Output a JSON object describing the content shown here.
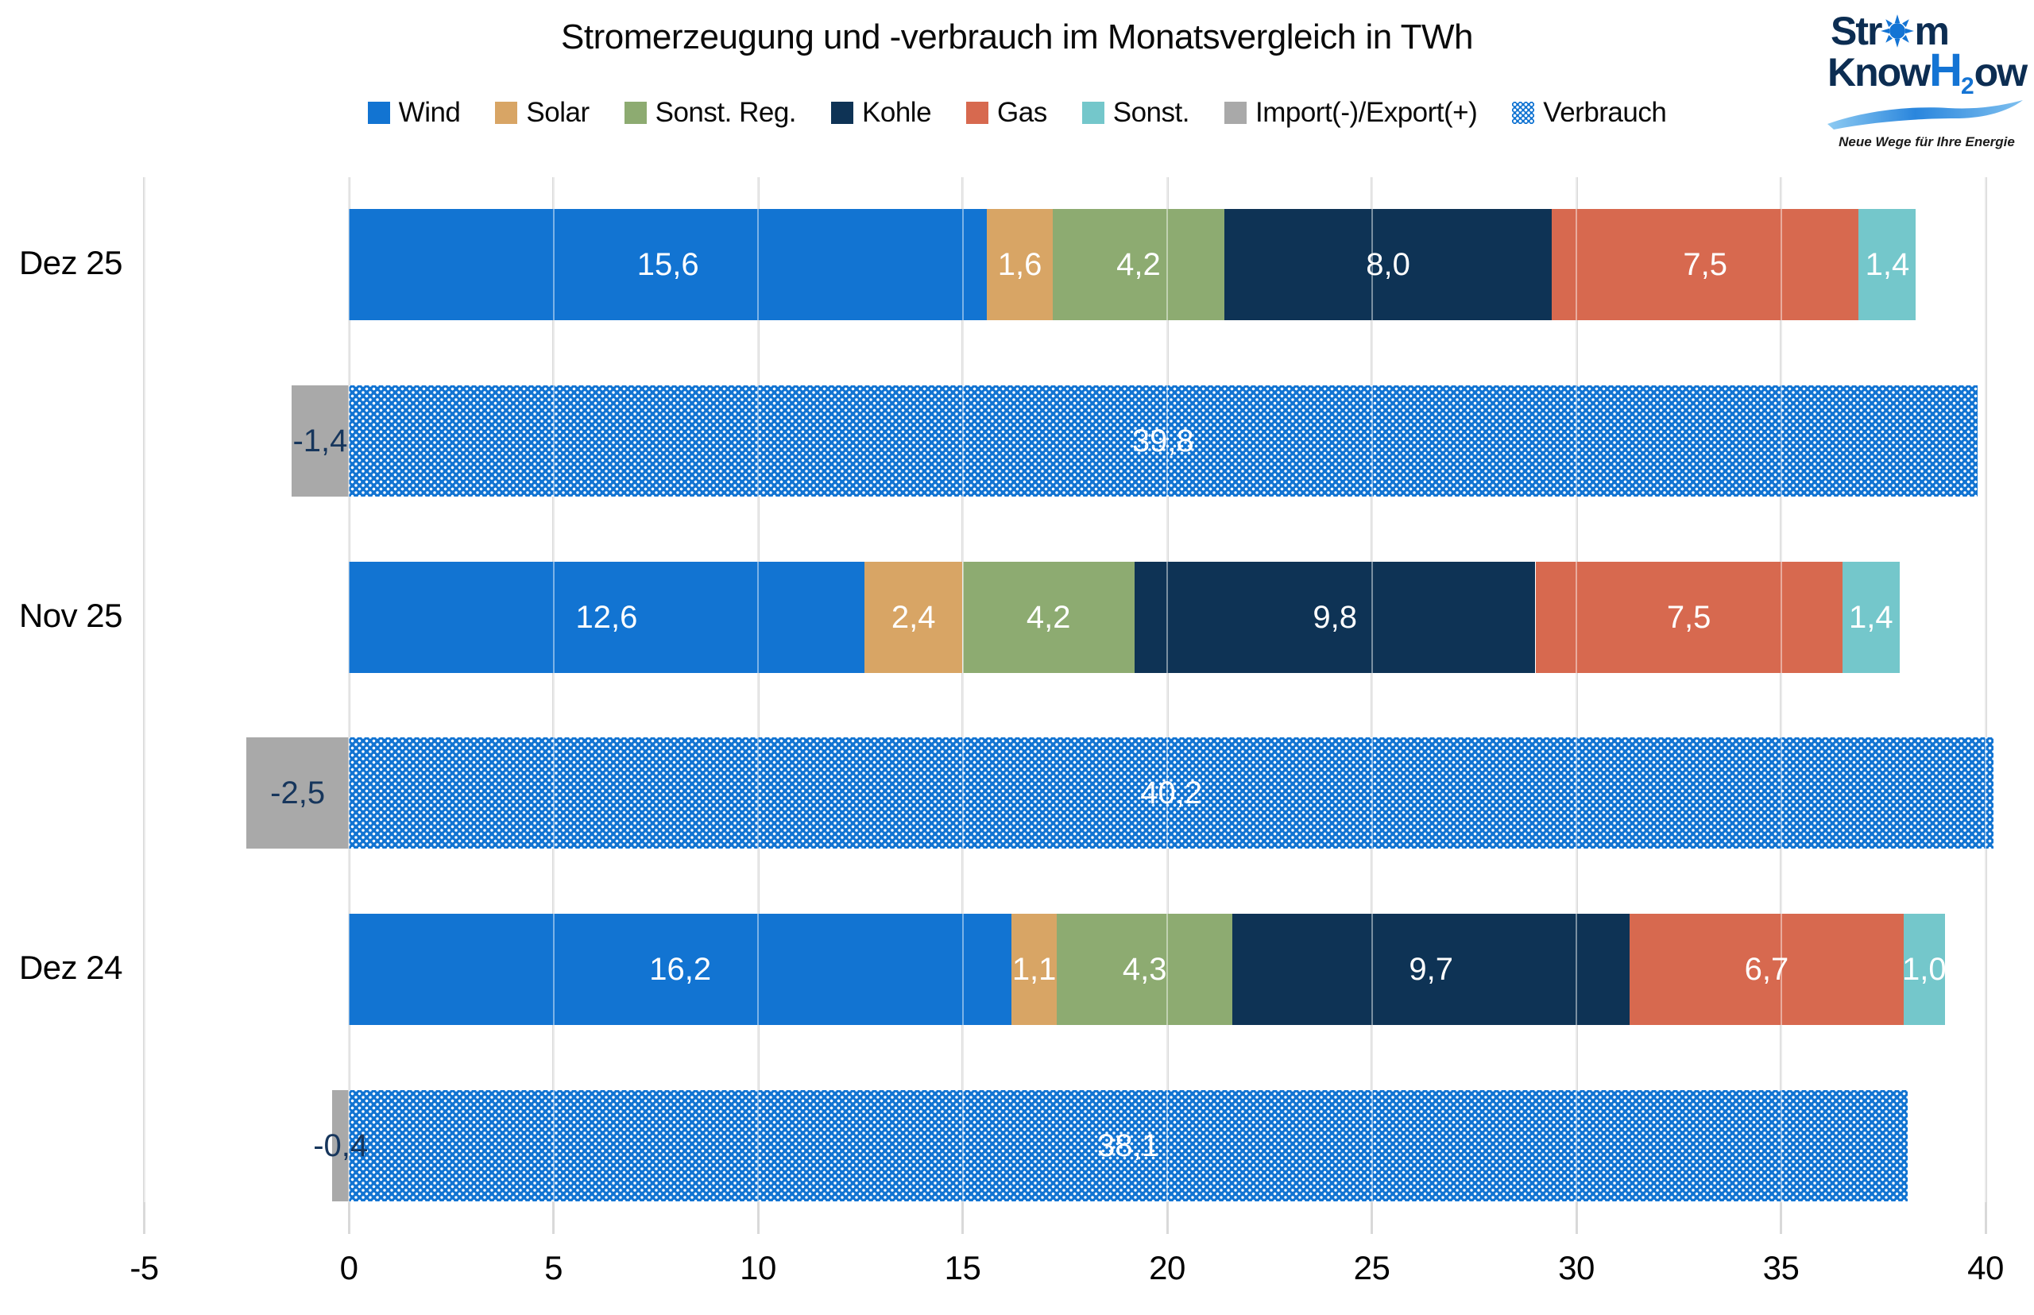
{
  "title": "Stromerzeugung und -verbrauch im Monatsvergleich in TWh",
  "logo": {
    "line1_pre": "Str",
    "line1_post": "m",
    "line2_pre": "Know",
    "line2_h": "H",
    "line2_sub": "2",
    "line2_post": "ow",
    "tagline": "Neue Wege für Ihre Energie",
    "navy": "#0c2d52",
    "blue": "#1474d4"
  },
  "legend": [
    {
      "label": "Wind",
      "color": "#1274d2",
      "pattern": false
    },
    {
      "label": "Solar",
      "color": "#d8a565",
      "pattern": false
    },
    {
      "label": "Sonst. Reg.",
      "color": "#8dab71",
      "pattern": false
    },
    {
      "label": "Kohle",
      "color": "#0e3355",
      "pattern": false
    },
    {
      "label": "Gas",
      "color": "#d7694f",
      "pattern": false
    },
    {
      "label": "Sonst.",
      "color": "#74c7cb",
      "pattern": false
    },
    {
      "label": "Import(-)/Export(+)",
      "color": "#a9a9a9",
      "pattern": false
    },
    {
      "label": "Verbrauch",
      "color": "#1274d2",
      "pattern": true
    }
  ],
  "axis": {
    "min": -5,
    "max": 40,
    "ticks": [
      -5,
      0,
      5,
      10,
      15,
      20,
      25,
      30,
      35,
      40
    ],
    "tick_labels": [
      "-5",
      "0",
      "5",
      "10",
      "15",
      "20",
      "25",
      "30",
      "35",
      "40"
    ]
  },
  "chart_data": {
    "type": "bar",
    "orientation": "horizontal-stacked",
    "title": "Stromerzeugung und -verbrauch im Monatsvergleich in TWh",
    "unit": "TWh",
    "categories": [
      "Dez 25",
      "Nov 25",
      "Dez 24"
    ],
    "generation_series": [
      {
        "name": "Wind",
        "key": "wind",
        "color": "#1274d2",
        "values": [
          15.6,
          12.6,
          16.2
        ]
      },
      {
        "name": "Solar",
        "key": "solar",
        "color": "#d8a565",
        "values": [
          1.6,
          2.4,
          1.1
        ]
      },
      {
        "name": "Sonst. Reg.",
        "key": "sonst-reg",
        "color": "#8dab71",
        "values": [
          4.2,
          4.2,
          4.3
        ]
      },
      {
        "name": "Kohle",
        "key": "kohle",
        "color": "#0e3355",
        "values": [
          8.0,
          9.8,
          9.7
        ]
      },
      {
        "name": "Gas",
        "key": "gas",
        "color": "#d7694f",
        "values": [
          7.5,
          7.5,
          6.7
        ]
      },
      {
        "name": "Sonst.",
        "key": "sonst",
        "color": "#74c7cb",
        "values": [
          1.4,
          1.4,
          1.0
        ]
      }
    ],
    "balance_series": [
      {
        "name": "Import(-)/Export(+)",
        "key": "import-export",
        "color": "#a9a9a9",
        "label_color": "#17365c",
        "values": [
          -1.4,
          -2.5,
          -0.4
        ]
      },
      {
        "name": "Verbrauch",
        "key": "verbrauch",
        "color": "#1274d2",
        "pattern": "white-dots",
        "values": [
          39.8,
          40.2,
          38.1
        ]
      }
    ],
    "data_labels": {
      "Dez 25": {
        "Wind": "15,6",
        "Solar": "1,6",
        "Sonst. Reg.": "4,2",
        "Kohle": "8,0",
        "Gas": "7,5",
        "Sonst.": "1,4",
        "Import(-)/Export(+)": "-1,4",
        "Verbrauch": "39,8"
      },
      "Nov 25": {
        "Wind": "12,6",
        "Solar": "2,4",
        "Sonst. Reg.": "4,2",
        "Kohle": "9,8",
        "Gas": "7,5",
        "Sonst.": "1,4",
        "Import(-)/Export(+)": "-2,5",
        "Verbrauch": "40,2"
      },
      "Dez 24": {
        "Wind": "16,2",
        "Solar": "1,1",
        "Sonst. Reg.": "4,3",
        "Kohle": "9,7",
        "Gas": "6,7",
        "Sonst.": "1,0",
        "Import(-)/Export(+)": "-0,4",
        "Verbrauch": "38,1"
      }
    },
    "xlim": [
      -5,
      40
    ],
    "grid": true,
    "legend_position": "top",
    "decimal_separator": ","
  }
}
